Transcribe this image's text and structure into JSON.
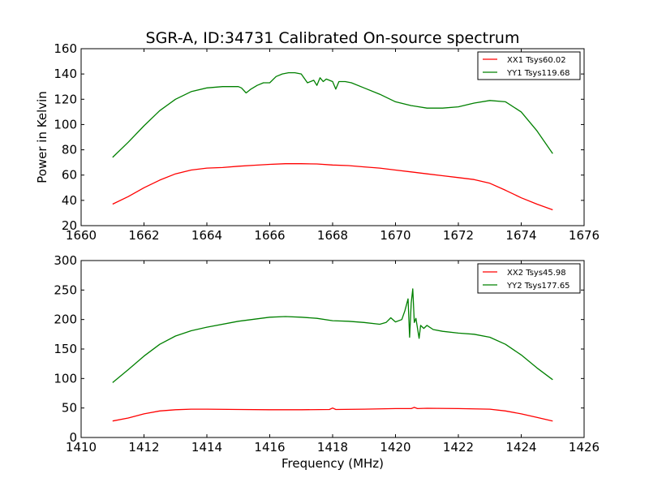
{
  "chart_data": [
    {
      "type": "line",
      "title": "SGR-A, ID:34731 Calibrated On-source spectrum",
      "xlabel": "",
      "ylabel": "Power in Kelvin",
      "xlim": [
        1660,
        1676
      ],
      "ylim": [
        20,
        160
      ],
      "xticks": [
        "1660",
        "1662",
        "1664",
        "1666",
        "1668",
        "1670",
        "1672",
        "1674",
        "1676"
      ],
      "yticks": [
        "20",
        "40",
        "60",
        "80",
        "100",
        "120",
        "140",
        "160"
      ],
      "grid": false,
      "legend": "top-right",
      "series": [
        {
          "name": "XX1 Tsys60.02",
          "color": "#ff0000",
          "x": [
            1661.0,
            1661.5,
            1662.0,
            1662.5,
            1663.0,
            1663.5,
            1664.0,
            1664.5,
            1665.0,
            1665.5,
            1666.0,
            1666.5,
            1667.0,
            1667.5,
            1668.0,
            1668.5,
            1669.0,
            1669.5,
            1670.0,
            1670.5,
            1671.0,
            1671.5,
            1672.0,
            1672.5,
            1673.0,
            1673.5,
            1674.0,
            1674.5,
            1675.0
          ],
          "y": [
            37,
            43,
            50,
            56,
            61,
            64,
            65.5,
            66,
            67,
            67.8,
            68.5,
            69,
            69,
            68.8,
            68,
            67.5,
            66.5,
            65.5,
            64,
            62.5,
            61,
            59.5,
            58,
            56.5,
            53.5,
            48,
            42,
            37,
            32.5
          ]
        },
        {
          "name": "YY1 Tsys119.68",
          "color": "#008000",
          "x": [
            1661.0,
            1661.5,
            1662.0,
            1662.5,
            1663.0,
            1663.5,
            1664.0,
            1664.5,
            1665.0,
            1665.1,
            1665.25,
            1665.4,
            1665.6,
            1665.8,
            1666.0,
            1666.2,
            1666.4,
            1666.6,
            1666.8,
            1667.0,
            1667.2,
            1667.4,
            1667.5,
            1667.6,
            1667.7,
            1667.8,
            1668.0,
            1668.1,
            1668.2,
            1668.4,
            1668.6,
            1669.0,
            1669.5,
            1670.0,
            1670.5,
            1671.0,
            1671.5,
            1672.0,
            1672.5,
            1673.0,
            1673.5,
            1674.0,
            1674.5,
            1675.0
          ],
          "y": [
            74,
            86,
            99,
            111,
            120,
            126,
            129,
            130,
            130,
            129,
            125,
            128,
            131,
            133,
            133,
            138,
            140,
            141,
            141,
            140,
            133,
            135,
            131,
            137,
            134,
            136,
            134,
            128,
            134,
            134,
            133,
            129,
            124,
            118,
            115,
            113,
            113,
            114,
            117,
            119,
            118,
            110,
            95,
            77
          ]
        }
      ]
    },
    {
      "type": "line",
      "title": "",
      "xlabel": "Frequency (MHz)",
      "ylabel": "",
      "xlim": [
        1410,
        1426
      ],
      "ylim": [
        0,
        300
      ],
      "xticks": [
        "1410",
        "1412",
        "1414",
        "1416",
        "1418",
        "1420",
        "1422",
        "1424",
        "1426"
      ],
      "yticks": [
        "0",
        "50",
        "100",
        "150",
        "200",
        "250",
        "300"
      ],
      "grid": false,
      "legend": "top-right",
      "series": [
        {
          "name": "XX2 Tsys45.98",
          "color": "#ff0000",
          "x": [
            1411.0,
            1411.5,
            1412.0,
            1412.5,
            1413.0,
            1413.5,
            1414.0,
            1415.0,
            1416.0,
            1417.0,
            1417.9,
            1418.0,
            1418.1,
            1419.0,
            1420.0,
            1420.5,
            1420.6,
            1420.7,
            1421.0,
            1422.0,
            1423.0,
            1423.5,
            1424.0,
            1424.5,
            1425.0
          ],
          "y": [
            28,
            33,
            40,
            45,
            47,
            48,
            48,
            47.5,
            47,
            47,
            47.5,
            50,
            47.5,
            48,
            49,
            49,
            51,
            49,
            49.5,
            49,
            48,
            45,
            40,
            34,
            28
          ]
        },
        {
          "name": "YY2 Tsys177.65",
          "color": "#008000",
          "x": [
            1411.0,
            1411.5,
            1412.0,
            1412.5,
            1413.0,
            1413.5,
            1414.0,
            1415.0,
            1416.0,
            1416.5,
            1417.0,
            1417.5,
            1418.0,
            1418.5,
            1419.0,
            1419.5,
            1419.7,
            1419.85,
            1420.0,
            1420.2,
            1420.3,
            1420.4,
            1420.45,
            1420.5,
            1420.55,
            1420.6,
            1420.65,
            1420.75,
            1420.8,
            1420.9,
            1421.0,
            1421.2,
            1421.5,
            1422.0,
            1422.5,
            1423.0,
            1423.5,
            1424.0,
            1424.5,
            1425.0
          ],
          "y": [
            93,
            115,
            138,
            158,
            172,
            181,
            187,
            197,
            204,
            205,
            204,
            202,
            198,
            197,
            195,
            192,
            195,
            203,
            196,
            200,
            215,
            235,
            170,
            228,
            252,
            195,
            202,
            168,
            190,
            185,
            190,
            183,
            180,
            177,
            175,
            170,
            158,
            140,
            118,
            98
          ]
        }
      ]
    }
  ]
}
